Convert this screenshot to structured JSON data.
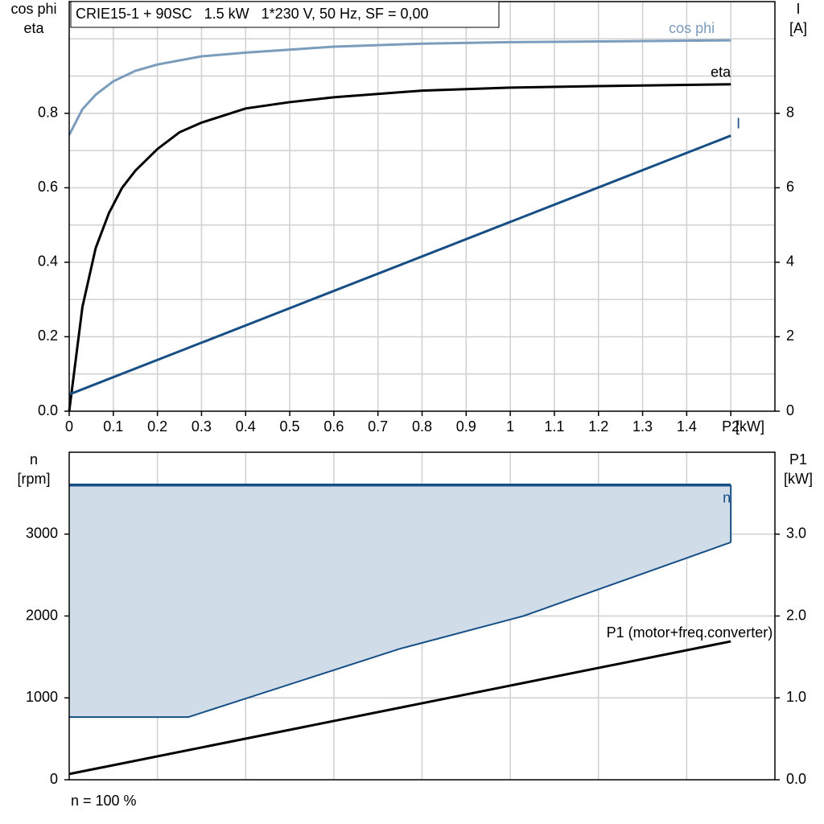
{
  "chart_data": [
    {
      "type": "line",
      "title": "CRIE15-1 + 90SC   1.5 kW   1*230 V, 50 Hz, SF = 0,00",
      "ylabel": [
        "cos phi",
        "eta"
      ],
      "y2label": [
        "I",
        "[A]"
      ],
      "xunit": "[kW]",
      "xlim": [
        0,
        1.6
      ],
      "xticks": [
        0,
        0.1,
        0.2,
        0.3,
        0.4,
        0.5,
        0.6,
        0.7,
        0.8,
        0.9,
        1.0,
        1.1,
        1.2,
        1.3,
        1.4,
        {
          "value": 1.5,
          "label": "P2"
        }
      ],
      "ylim": [
        0,
        1.1
      ],
      "yticks": [
        {
          "value": 0,
          "label": "0.0"
        },
        0.2,
        0.4,
        0.6,
        0.8
      ],
      "ygrid": [
        0.1,
        0.2,
        0.3,
        0.4,
        0.5,
        0.6,
        0.7,
        0.8,
        0.9,
        1.0
      ],
      "y2lim": [
        0,
        11
      ],
      "y2ticks": [
        0,
        2,
        4,
        6,
        8
      ],
      "grid": true,
      "series": [
        {
          "name": "cos phi",
          "color": "#7b9cbd",
          "x": [
            0,
            0.03,
            0.06,
            0.1,
            0.15,
            0.2,
            0.3,
            0.4,
            0.6,
            0.8,
            1.0,
            1.5
          ],
          "values": [
            0.742,
            0.811,
            0.85,
            0.886,
            0.914,
            0.931,
            0.953,
            0.963,
            0.979,
            0.987,
            0.991,
            0.996
          ]
        },
        {
          "name": "eta",
          "color": "#000000",
          "x": [
            0,
            0.03,
            0.06,
            0.09,
            0.12,
            0.15,
            0.2,
            0.25,
            0.3,
            0.4,
            0.5,
            0.6,
            0.8,
            1.0,
            1.2,
            1.5
          ],
          "values": [
            0,
            0.28,
            0.438,
            0.532,
            0.6,
            0.646,
            0.704,
            0.749,
            0.775,
            0.813,
            0.83,
            0.843,
            0.861,
            0.869,
            0.873,
            0.878
          ]
        },
        {
          "name": "I",
          "color": "#164f86",
          "axis": "y2",
          "x": [
            0,
            1.5
          ],
          "values": [
            0.45,
            7.4
          ]
        }
      ]
    },
    {
      "type": "line",
      "ylabel": [
        "n",
        "[rpm]"
      ],
      "y2label": [
        "P1",
        "[kW]"
      ],
      "footnote": "n = 100 %",
      "xlim": [
        0,
        1.6
      ],
      "xgrid": [
        0.2,
        0.4,
        0.6,
        0.8,
        1.0,
        1.2,
        1.4
      ],
      "ylim": [
        0,
        4000
      ],
      "yticks": [
        0,
        1000,
        2000,
        3000
      ],
      "y2lim": [
        0,
        4.0
      ],
      "y2ticks": [
        {
          "value": 0,
          "label": "0.0"
        },
        {
          "value": 1,
          "label": "1.0"
        },
        {
          "value": 2,
          "label": "2.0"
        },
        {
          "value": 3,
          "label": "3.0"
        }
      ],
      "grid": true,
      "series": [
        {
          "name": "n",
          "color": "#164f86",
          "fill": "#d0dce8",
          "x": [
            0,
            0.27,
            0.75,
            1.03,
            1.5
          ],
          "values": [
            3600,
            3600,
            3600,
            3600,
            3600
          ],
          "lower": [
            765,
            765,
            1600,
            2000,
            2900
          ]
        },
        {
          "name": "P1 (motor+freq.converter)",
          "color": "#000000",
          "axis": "y2",
          "x": [
            0,
            1.5
          ],
          "values": [
            0.07,
            1.69
          ]
        }
      ]
    }
  ]
}
